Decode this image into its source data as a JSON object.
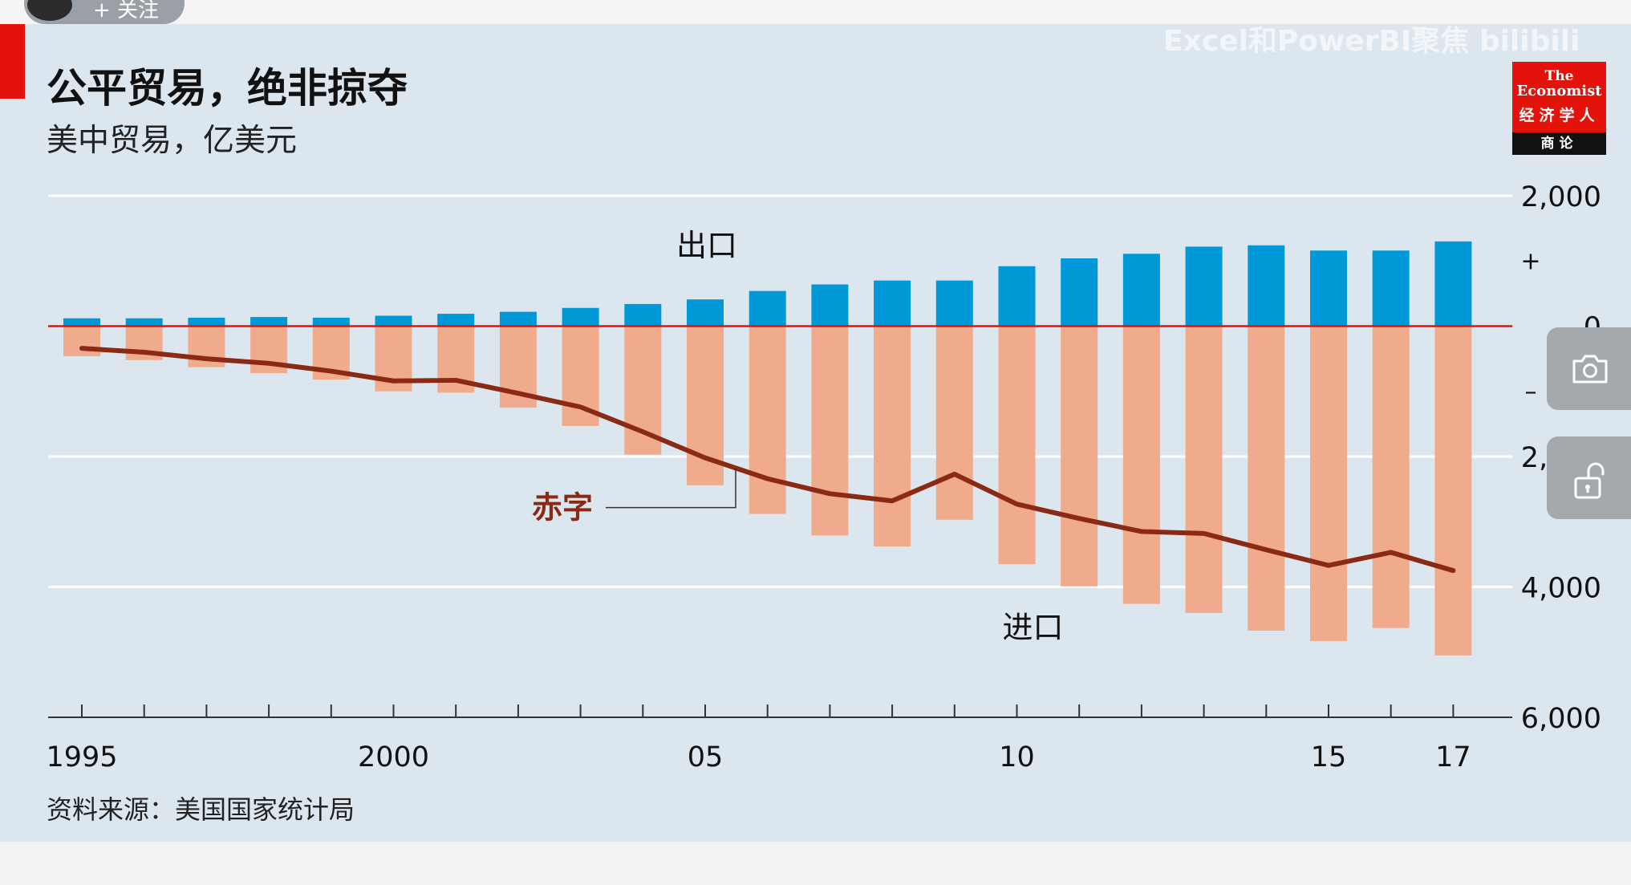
{
  "header": {
    "title": "公平贸易，绝非掠夺",
    "subtitle": "美中贸易，亿美元",
    "follow_label": "+ 关注",
    "watermark": "Excel和PowerBI聚焦 bilibili"
  },
  "logo": {
    "line1": "The",
    "line2": "Economist",
    "line3": "经济学人",
    "band": "商论"
  },
  "source": "资料来源：美国国家统计局",
  "colors": {
    "background": "#dce6ee",
    "exports": "#0099d8",
    "imports": "#f0aa8c",
    "deficit": "#8b2a14",
    "zero_line": "#e3120b",
    "brand": "#e3120b"
  },
  "icons": [
    "camera-icon",
    "unlock-icon"
  ],
  "chart_data": {
    "type": "bar",
    "title": "公平贸易，绝非掠夺",
    "subtitle": "美中贸易，亿美元",
    "categories": [
      1995,
      1996,
      1997,
      1998,
      1999,
      2000,
      2001,
      2002,
      2003,
      2004,
      2005,
      2006,
      2007,
      2008,
      2009,
      2010,
      2011,
      2012,
      2013,
      2014,
      2015,
      2016,
      2017
    ],
    "x_tick_labels": [
      {
        "year": 1995,
        "label": "1995"
      },
      {
        "year": 2000,
        "label": "2000"
      },
      {
        "year": 2005,
        "label": "05"
      },
      {
        "year": 2010,
        "label": "10"
      },
      {
        "year": 2015,
        "label": "15"
      },
      {
        "year": 2017,
        "label": "17"
      }
    ],
    "y_tick_labels": [
      {
        "value": 2000,
        "label": "2,000"
      },
      {
        "value": 0,
        "label": "0"
      },
      {
        "value": -2000,
        "label": "2,000"
      },
      {
        "value": -4000,
        "label": "4,000"
      },
      {
        "value": -6000,
        "label": "6,000"
      }
    ],
    "sign_labels": [
      {
        "value": 1000,
        "label": "+"
      },
      {
        "value": -1000,
        "label": "–"
      }
    ],
    "ylim": [
      -6000,
      2000
    ],
    "grid": true,
    "series": [
      {
        "name": "出口",
        "type": "bar",
        "values": [
          120,
          120,
          130,
          140,
          130,
          160,
          190,
          220,
          280,
          340,
          410,
          540,
          640,
          700,
          700,
          920,
          1040,
          1110,
          1220,
          1240,
          1160,
          1160,
          1300
        ]
      },
      {
        "name": "进口",
        "type": "bar",
        "values": [
          -460,
          -520,
          -630,
          -720,
          -820,
          -1000,
          -1020,
          -1250,
          -1530,
          -1970,
          -2440,
          -2880,
          -3210,
          -3380,
          -2970,
          -3650,
          -3990,
          -4260,
          -4400,
          -4670,
          -4830,
          -4630,
          -5050
        ]
      },
      {
        "name": "赤字",
        "type": "line",
        "values": [
          -340,
          -400,
          -500,
          -570,
          -690,
          -840,
          -830,
          -1030,
          -1240,
          -1620,
          -2020,
          -2340,
          -2570,
          -2680,
          -2270,
          -2730,
          -2950,
          -3150,
          -3180,
          -3430,
          -3670,
          -3470,
          -3750
        ]
      }
    ]
  }
}
